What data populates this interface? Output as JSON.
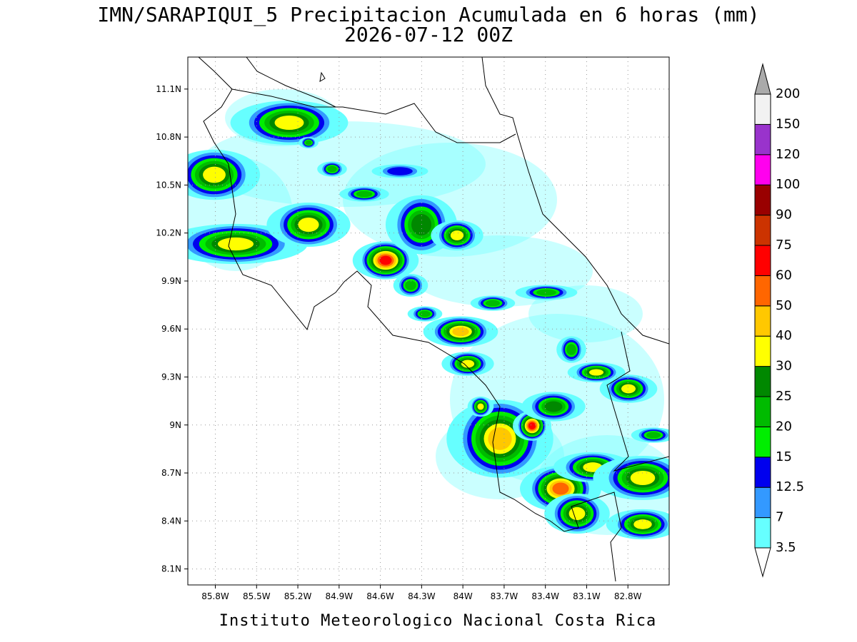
{
  "title": "IMN/SARAPIQUI_5 Precipitacion Acumulada en 6 horas (mm)",
  "subtitle": "2026-07-12 00Z",
  "map": {
    "lonlim": [
      -86.0,
      -82.5
    ],
    "latlim": [
      8.0,
      11.3
    ],
    "lonticks": [
      {
        "value": -85.8,
        "label": "85.8W"
      },
      {
        "value": -85.5,
        "label": "85.5W"
      },
      {
        "value": -85.2,
        "label": "85.2W"
      },
      {
        "value": -84.9,
        "label": "84.9W"
      },
      {
        "value": -84.6,
        "label": "84.6W"
      },
      {
        "value": -84.3,
        "label": "84.3W"
      },
      {
        "value": -84.0,
        "label": "84W"
      },
      {
        "value": -83.7,
        "label": "83.7W"
      },
      {
        "value": -83.4,
        "label": "83.4W"
      },
      {
        "value": -83.1,
        "label": "83.1W"
      },
      {
        "value": -82.8,
        "label": "82.8W"
      }
    ],
    "latticks": [
      {
        "value": 8.1,
        "label": "8.1N"
      },
      {
        "value": 8.4,
        "label": "8.4N"
      },
      {
        "value": 8.7,
        "label": "8.7N"
      },
      {
        "value": 9.0,
        "label": "9N"
      },
      {
        "value": 9.3,
        "label": "9.3N"
      },
      {
        "value": 9.6,
        "label": "9.6N"
      },
      {
        "value": 9.9,
        "label": "9.9N"
      },
      {
        "value": 10.2,
        "label": "10.2N"
      },
      {
        "value": 10.5,
        "label": "10.5N"
      },
      {
        "value": 10.8,
        "label": "10.8N"
      },
      {
        "value": 11.1,
        "label": "11.1N"
      }
    ],
    "grid": true
  },
  "colorbar": {
    "levels": [
      3.5,
      7,
      12.5,
      15,
      20,
      25,
      30,
      40,
      50,
      60,
      75,
      90,
      100,
      120,
      150,
      200
    ],
    "colors": [
      "#ffffff",
      "#66ffff",
      "#3399ff",
      "#0000ee",
      "#00ee00",
      "#00bb00",
      "#008800",
      "#ffff00",
      "#ffc800",
      "#ff6600",
      "#ff0000",
      "#cc3300",
      "#990000",
      "#ff00ee",
      "#9933cc",
      "#f2f2f2",
      "#aaaaaa"
    ]
  },
  "footer": "Instituto Meteorologico Nacional Costa Rica"
}
